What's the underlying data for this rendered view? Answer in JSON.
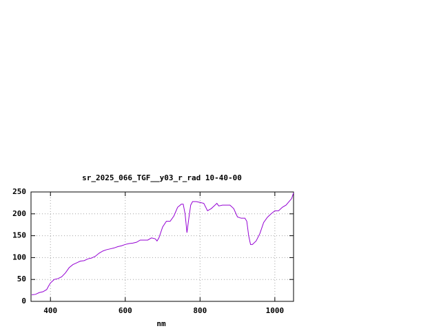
{
  "chart_data": {
    "type": "line",
    "title": "sr_2025_066_TGF__y03_r_rad 10-40-00",
    "x_label": "nm",
    "x": [
      350,
      360,
      370,
      380,
      390,
      395,
      400,
      410,
      420,
      430,
      440,
      450,
      460,
      470,
      480,
      490,
      500,
      510,
      520,
      530,
      540,
      550,
      560,
      570,
      580,
      590,
      600,
      610,
      620,
      630,
      640,
      650,
      660,
      670,
      680,
      685,
      690,
      700,
      710,
      720,
      730,
      740,
      750,
      755,
      760,
      765,
      770,
      775,
      780,
      790,
      800,
      810,
      820,
      830,
      840,
      845,
      850,
      860,
      870,
      880,
      890,
      900,
      910,
      920,
      925,
      930,
      935,
      940,
      950,
      960,
      970,
      980,
      990,
      1000,
      1010,
      1020,
      1030,
      1040,
      1045,
      1050
    ],
    "values": [
      15,
      16,
      20,
      22,
      27,
      35,
      42,
      50,
      52,
      56,
      65,
      77,
      84,
      88,
      92,
      93,
      97,
      99,
      103,
      110,
      115,
      118,
      120,
      122,
      125,
      127,
      130,
      132,
      133,
      135,
      140,
      140,
      140,
      145,
      143,
      138,
      145,
      170,
      183,
      183,
      195,
      215,
      222,
      222,
      200,
      157,
      190,
      220,
      228,
      228,
      226,
      224,
      207,
      212,
      220,
      224,
      218,
      220,
      220,
      220,
      212,
      193,
      190,
      190,
      183,
      150,
      130,
      130,
      138,
      155,
      180,
      192,
      200,
      207,
      207,
      215,
      220,
      230,
      235,
      248
    ],
    "color": "#9400d3",
    "xlim": [
      348,
      1050
    ],
    "ylim": [
      0,
      250
    ],
    "xticks": [
      400,
      600,
      800,
      1000
    ],
    "yticks": [
      0,
      50,
      100,
      150,
      200,
      250
    ],
    "grid": true
  }
}
